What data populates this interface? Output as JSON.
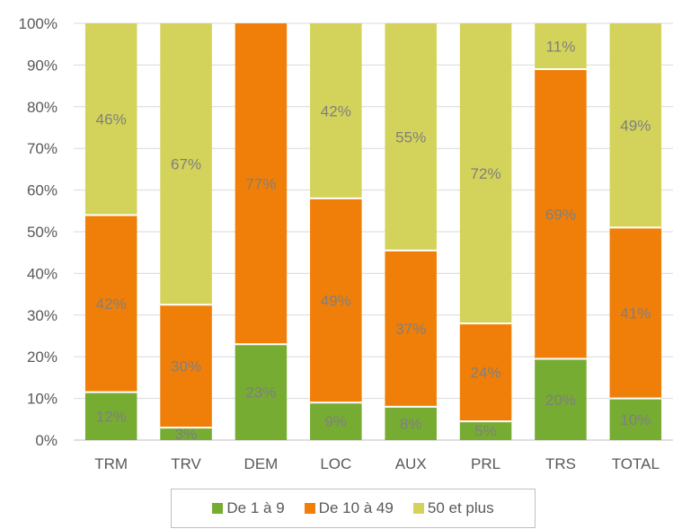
{
  "chart_data": {
    "type": "bar",
    "stacked": true,
    "percent_stacked": true,
    "categories": [
      "TRM",
      "TRV",
      "DEM",
      "LOC",
      "AUX",
      "PRL",
      "TRS",
      "TOTAL"
    ],
    "series": [
      {
        "name": "De 1 à 9",
        "color": "#77ac33",
        "values": [
          11.5,
          3,
          23,
          9,
          8,
          4.5,
          19.5,
          10
        ],
        "labels": [
          "12%",
          "3%",
          "23%",
          "9%",
          "8%",
          "5%",
          "20%",
          "10%"
        ]
      },
      {
        "name": "De 10 à 49",
        "color": "#f07f09",
        "values": [
          42.5,
          29.5,
          77,
          49,
          37.5,
          23.5,
          69.5,
          41
        ],
        "labels": [
          "42%",
          "30%",
          "77%",
          "49%",
          "37%",
          "24%",
          "69%",
          "41%"
        ]
      },
      {
        "name": "50 et plus",
        "color": "#d3d35b",
        "values": [
          46,
          67.5,
          0,
          42,
          54.5,
          72,
          11,
          49
        ],
        "labels": [
          "46%",
          "67%",
          "",
          "42%",
          "55%",
          "72%",
          "11%",
          "49%"
        ]
      }
    ],
    "ylim": [
      0,
      100
    ],
    "y_ticks": [
      "0%",
      "10%",
      "20%",
      "30%",
      "40%",
      "50%",
      "60%",
      "70%",
      "80%",
      "90%",
      "100%"
    ],
    "grid": true,
    "legend_position": "bottom",
    "title": "",
    "xlabel": "",
    "ylabel": ""
  }
}
